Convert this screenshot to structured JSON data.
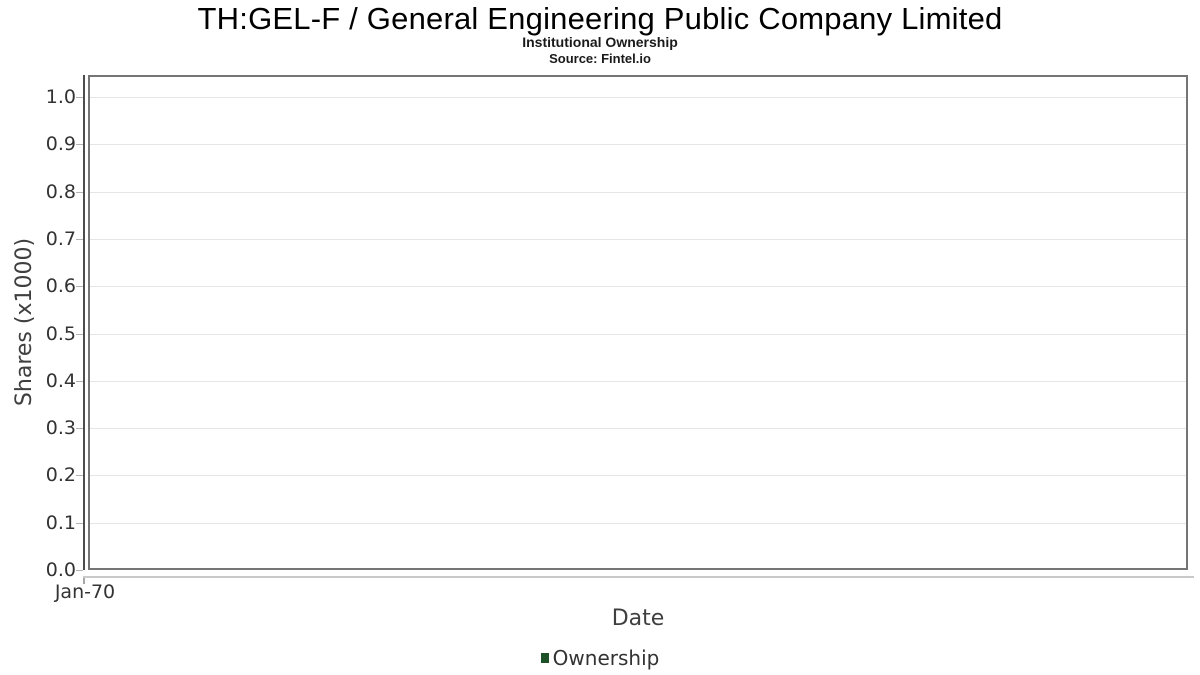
{
  "header": {
    "title": "TH:GEL-F / General Engineering Public Company Limited",
    "subtitle": "Institutional Ownership",
    "source": "Source: Fintel.io"
  },
  "chart_data": {
    "type": "bar",
    "title": "TH:GEL-F / General Engineering Public Company Limited",
    "subtitle": "Institutional Ownership",
    "source": "Source: Fintel.io",
    "xlabel": "Date",
    "ylabel": "Shares (x1000)",
    "ylim": [
      0.0,
      1.05
    ],
    "yticks": [
      "0.0",
      "0.1",
      "0.2",
      "0.3",
      "0.4",
      "0.5",
      "0.6",
      "0.7",
      "0.8",
      "0.9",
      "1.0"
    ],
    "xticks": [
      "Jan-70"
    ],
    "categories": [
      "Jan-70"
    ],
    "series": [
      {
        "name": "Ownership",
        "color": "#1e5128",
        "values": []
      }
    ],
    "grid": "horizontal",
    "legend_position": "bottom",
    "plot_is_empty": true
  },
  "colors": {
    "plot_border": "#757575",
    "gridline": "#e6e6e6",
    "y_axis_line": "#4d4d4d",
    "x_axis_line": "#c9c9c9",
    "tick_label": "#333333",
    "axis_title": "#3f3f3f",
    "legend_marker": "#1e5128"
  }
}
